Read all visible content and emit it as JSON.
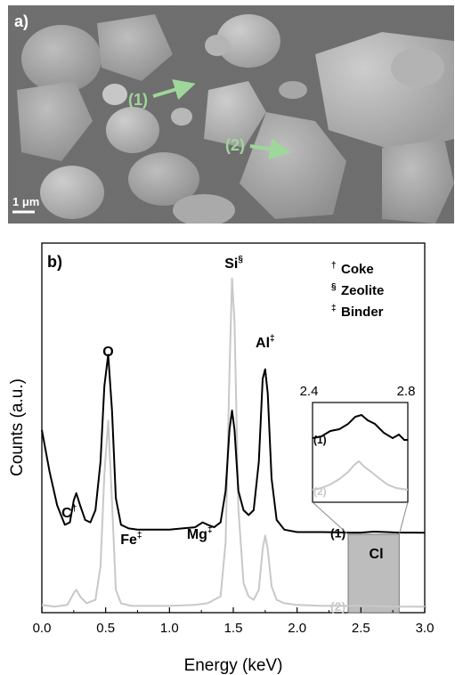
{
  "panel_a": {
    "label": "a)",
    "markers": [
      {
        "label": "(1)"
      },
      {
        "label": "(2)"
      }
    ],
    "scale_bar_label": "1 μm",
    "marker_color": "#9fd69a"
  },
  "chart_data": {
    "type": "line",
    "panel_label": "b)",
    "xlabel": "Energy (keV)",
    "ylabel": "Counts (a.u.)",
    "xlim": [
      0.0,
      3.0
    ],
    "x_ticks": [
      "0.0",
      "0.5",
      "1.0",
      "1.5",
      "2.0",
      "2.5",
      "3.0"
    ],
    "grid": false,
    "series": [
      {
        "name": "(1)",
        "color": "#000000",
        "x": [
          0.0,
          0.06,
          0.12,
          0.18,
          0.22,
          0.25,
          0.27,
          0.3,
          0.34,
          0.38,
          0.42,
          0.46,
          0.49,
          0.52,
          0.55,
          0.58,
          0.62,
          0.68,
          0.75,
          0.85,
          1.0,
          1.1,
          1.2,
          1.26,
          1.3,
          1.35,
          1.4,
          1.44,
          1.47,
          1.49,
          1.51,
          1.54,
          1.58,
          1.62,
          1.66,
          1.7,
          1.73,
          1.75,
          1.77,
          1.8,
          1.84,
          1.9,
          2.0,
          2.2,
          2.4,
          2.5,
          2.6,
          2.7,
          2.8,
          2.9,
          3.0
        ],
        "y": [
          0.55,
          0.38,
          0.24,
          0.16,
          0.17,
          0.26,
          0.29,
          0.24,
          0.18,
          0.17,
          0.22,
          0.42,
          0.73,
          0.86,
          0.63,
          0.27,
          0.16,
          0.145,
          0.14,
          0.14,
          0.14,
          0.145,
          0.15,
          0.17,
          0.16,
          0.15,
          0.17,
          0.3,
          0.55,
          0.63,
          0.55,
          0.3,
          0.22,
          0.2,
          0.22,
          0.42,
          0.76,
          0.8,
          0.7,
          0.35,
          0.18,
          0.14,
          0.13,
          0.13,
          0.128,
          0.128,
          0.132,
          0.13,
          0.128,
          0.128,
          0.127
        ]
      },
      {
        "name": "(2)",
        "color": "#c8c8c8",
        "x": [
          0.0,
          0.1,
          0.2,
          0.25,
          0.27,
          0.3,
          0.35,
          0.42,
          0.46,
          0.49,
          0.52,
          0.55,
          0.58,
          0.62,
          0.7,
          0.85,
          1.0,
          1.2,
          1.3,
          1.4,
          1.44,
          1.47,
          1.49,
          1.51,
          1.54,
          1.58,
          1.62,
          1.66,
          1.7,
          1.73,
          1.75,
          1.77,
          1.8,
          1.84,
          1.9,
          2.0,
          2.2,
          2.5,
          2.8,
          3.0
        ],
        "y": [
          0.015,
          0.01,
          0.015,
          0.05,
          0.06,
          0.04,
          0.02,
          0.03,
          0.13,
          0.4,
          0.56,
          0.32,
          0.06,
          0.02,
          0.012,
          0.012,
          0.012,
          0.015,
          0.02,
          0.04,
          0.2,
          0.7,
          0.98,
          0.85,
          0.3,
          0.08,
          0.04,
          0.03,
          0.06,
          0.18,
          0.22,
          0.18,
          0.07,
          0.03,
          0.02,
          0.015,
          0.012,
          0.012,
          0.01,
          0.01
        ]
      }
    ],
    "peak_labels": [
      {
        "text": "C",
        "mark": "†",
        "x": 0.27
      },
      {
        "text": "O",
        "mark": "",
        "x": 0.52
      },
      {
        "text": "Fe",
        "mark": "‡",
        "x": 0.7
      },
      {
        "text": "Mg",
        "mark": "‡",
        "x": 1.25
      },
      {
        "text": "Si",
        "mark": "§",
        "x": 1.49
      },
      {
        "text": "Al",
        "mark": "‡",
        "x": 1.75
      },
      {
        "text": "Cl",
        "mark": "",
        "x": 2.62
      }
    ],
    "legend": [
      {
        "mark": "†",
        "label": "Coke"
      },
      {
        "mark": "§",
        "label": "Zeolite"
      },
      {
        "mark": "‡",
        "label": "Binder"
      }
    ],
    "highlight_region": [
      2.4,
      2.8
    ],
    "inset": {
      "xlim_labels": [
        "2.4",
        "2.8"
      ],
      "series_labels": [
        "(1)",
        "(2)"
      ]
    }
  }
}
